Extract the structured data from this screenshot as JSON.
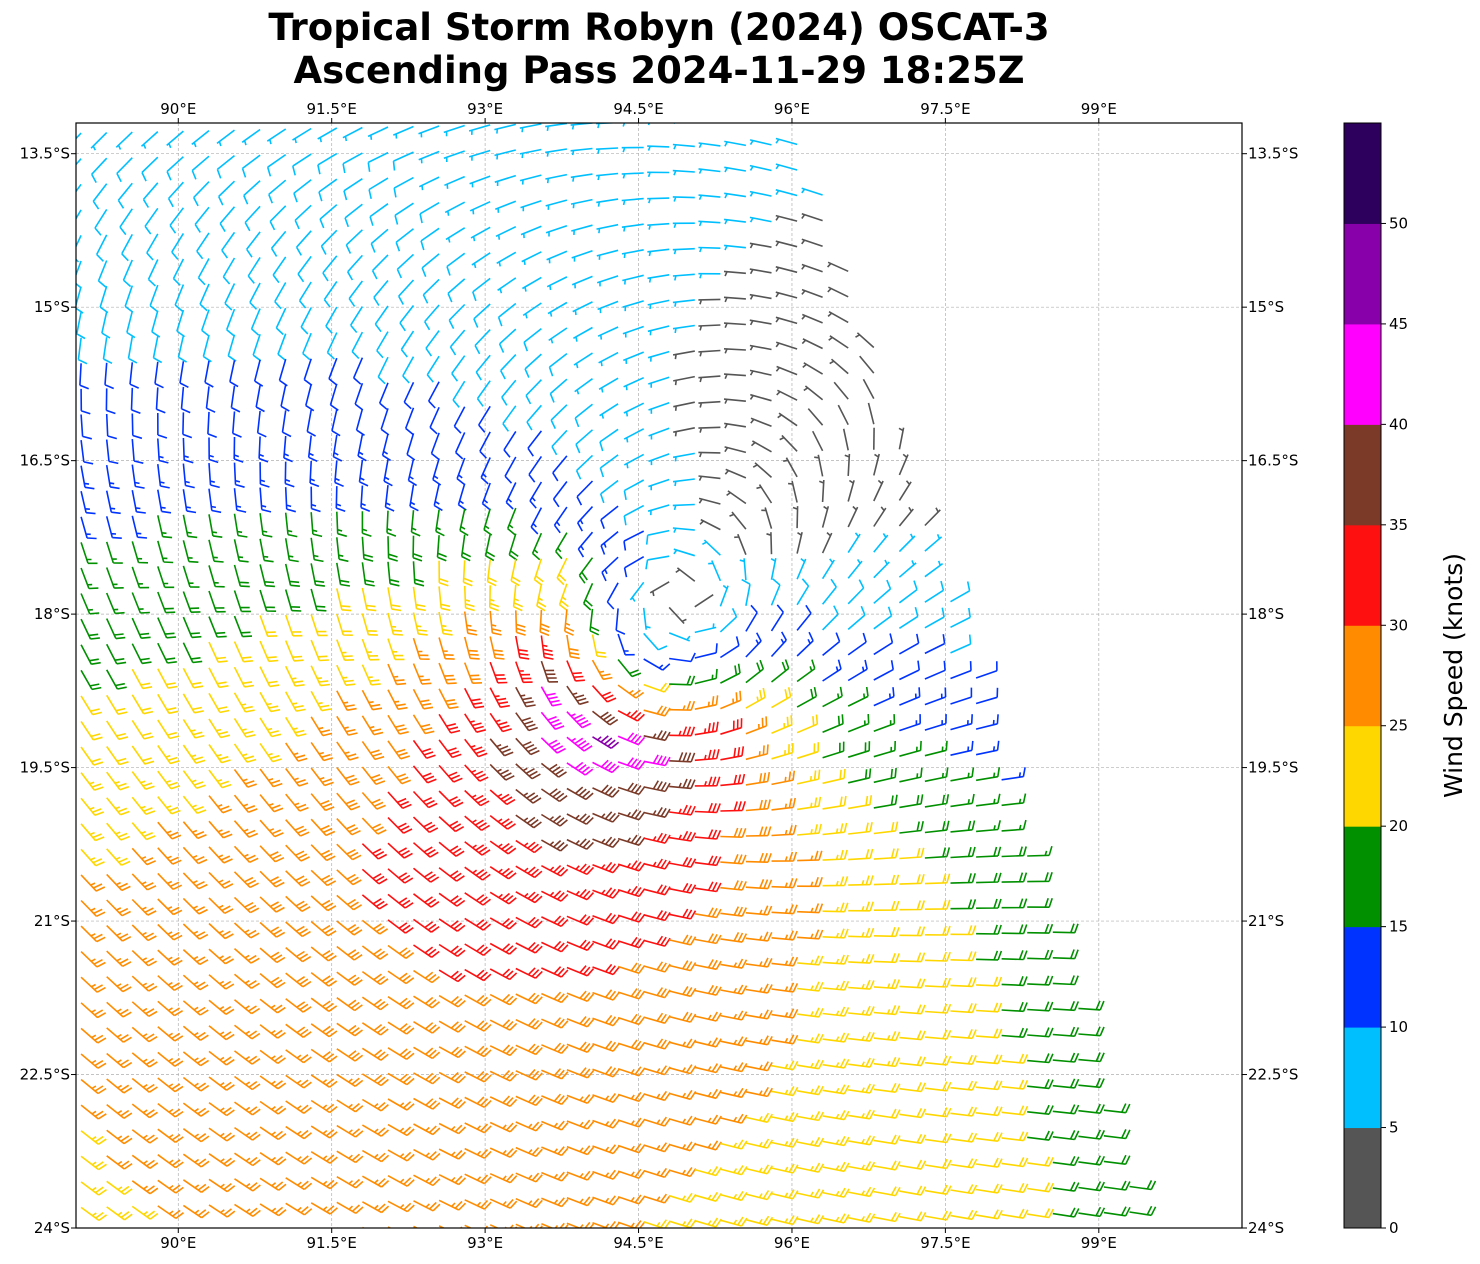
{
  "title_line1": "Tropical Storm Robyn (2024) OSCAT-3",
  "title_line2": "Ascending Pass 2024-11-29 18:25Z",
  "chart_data": {
    "type": "wind-barb-map",
    "lon_range": [
      89.0,
      100.4
    ],
    "lat_range": [
      -13.2,
      -24.0
    ],
    "lon_ticks": [
      90,
      91.5,
      93,
      94.5,
      96,
      97.5,
      99
    ],
    "lon_tick_labels": [
      "90°E",
      "91.5°E",
      "93°E",
      "94.5°E",
      "96°E",
      "97.5°E",
      "99°E"
    ],
    "lat_ticks": [
      -13.5,
      -15,
      -16.5,
      -18,
      -19.5,
      -21,
      -22.5,
      -24
    ],
    "lat_tick_labels": [
      "13.5°S",
      "15°S",
      "16.5°S",
      "18°S",
      "19.5°S",
      "21°S",
      "22.5°S",
      "24°S"
    ],
    "grid": true,
    "colorbar": {
      "label": "Wind Speed (knots)",
      "bounds": [
        0,
        5,
        10,
        15,
        20,
        25,
        30,
        35,
        40,
        45,
        50,
        55
      ],
      "tick_labels": [
        "0",
        "5",
        "10",
        "15",
        "20",
        "25",
        "30",
        "35",
        "40",
        "45",
        "50"
      ],
      "colors": [
        "#555555",
        "#00bfff",
        "#0033ff",
        "#009000",
        "#ffd700",
        "#ff8c00",
        "#ff1010",
        "#7b3a28",
        "#ff00ff",
        "#8800aa",
        "#2e005e"
      ]
    },
    "storm_model": {
      "center_lon": 94.6,
      "center_lat": -18.35,
      "max_wind_kt": 32,
      "radius_max_wind_deg": 1.0,
      "strong_quadrant_bearing_deg": 225,
      "background_wind_kt": 17,
      "grid_spacing_deg": 0.25,
      "swath_east_edge": [
        [
          96.1,
          -13.2
        ],
        [
          99.4,
          -24.0
        ]
      ]
    }
  }
}
